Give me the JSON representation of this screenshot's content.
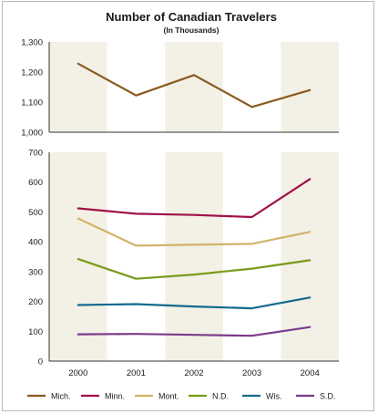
{
  "chart_data": {
    "type": "line",
    "title": "Number of Canadian Travelers",
    "subtitle": "(In Thousands)",
    "categories": [
      "2000",
      "2001",
      "2002",
      "2003",
      "2004"
    ],
    "legend_position": "bottom",
    "panels": [
      {
        "ylim": [
          1000,
          1300
        ],
        "yticks": [
          "1,000",
          "1,100",
          "1,200",
          "1,300"
        ],
        "series": [
          {
            "name": "Mich.",
            "color": "#8a5a1e",
            "values": [
              1228,
              1122,
              1190,
              1084,
              1140
            ]
          }
        ]
      },
      {
        "ylim": [
          0,
          700
        ],
        "yticks": [
          "0",
          "100",
          "200",
          "300",
          "400",
          "500",
          "600",
          "700"
        ],
        "series": [
          {
            "name": "Minn.",
            "color": "#a0104a",
            "values": [
              512,
              494,
              490,
              483,
              610
            ]
          },
          {
            "name": "Mont.",
            "color": "#d2b36a",
            "values": [
              478,
              387,
              390,
              393,
              433
            ]
          },
          {
            "name": "N.D.",
            "color": "#7a9a1a",
            "values": [
              342,
              276,
              290,
              310,
              338
            ]
          },
          {
            "name": "Wis.",
            "color": "#146a8e",
            "values": [
              188,
              191,
              183,
              177,
              213
            ]
          },
          {
            "name": "S.D.",
            "color": "#7a3a8a",
            "values": [
              90,
              91,
              88,
              85,
              114
            ]
          }
        ]
      }
    ],
    "legend": [
      {
        "name": "Mich.",
        "color": "#8a5a1e"
      },
      {
        "name": "Minn.",
        "color": "#a0104a"
      },
      {
        "name": "Mont.",
        "color": "#d2b36a"
      },
      {
        "name": "N.D.",
        "color": "#7a9a1a"
      },
      {
        "name": "Wis.",
        "color": "#146a8e"
      },
      {
        "name": "S.D.",
        "color": "#7a3a8a"
      }
    ],
    "band_color": "#f3f0e6"
  }
}
